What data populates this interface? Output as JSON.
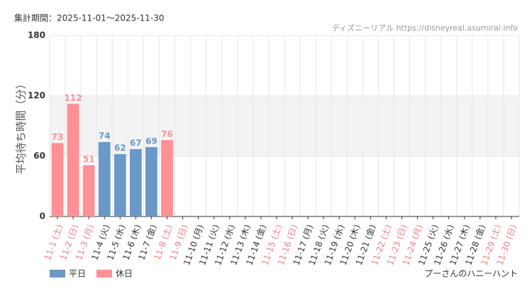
{
  "chart_data": {
    "type": "bar",
    "subtitle": "集計期間：2025-11-01〜2025-11-30",
    "source": "ディズニーリアル https://disneyreal.asumirai.info",
    "title": "プーさんのハニーハント",
    "y_label": "平均待ち時間（分）",
    "categories": [
      "11-1 (土)",
      "11-2 (日)",
      "11-3 (月)",
      "11-4 (火)",
      "11-5 (水)",
      "11-6 (木)",
      "11-7 (金)",
      "11-8 (土)",
      "11-9 (日)",
      "11-10 (月)",
      "11-11 (火)",
      "11-12 (水)",
      "11-13 (木)",
      "11-14 (金)",
      "11-15 (土)",
      "11-16 (日)",
      "11-17 (月)",
      "11-18 (火)",
      "11-19 (水)",
      "11-20 (木)",
      "11-21 (金)",
      "11-22 (土)",
      "11-23 (日)",
      "11-24 (月)",
      "11-25 (火)",
      "11-26 (水)",
      "11-27 (木)",
      "11-28 (金)",
      "11-29 (土)",
      "11-30 (日)"
    ],
    "category_colors": [
      "#f0808a",
      "#f0808a",
      "#f0808a",
      "#333333",
      "#333333",
      "#333333",
      "#333333",
      "#f0808a",
      "#f0808a",
      "#333333",
      "#333333",
      "#333333",
      "#333333",
      "#333333",
      "#f0808a",
      "#f0808a",
      "#333333",
      "#333333",
      "#333333",
      "#333333",
      "#333333",
      "#f0808a",
      "#f0808a",
      "#f0808a",
      "#333333",
      "#333333",
      "#333333",
      "#333333",
      "#f0808a",
      "#f0808a"
    ],
    "series": [
      {
        "name": "平日",
        "color": "#6a98c8",
        "values": [
          null,
          null,
          null,
          74,
          62,
          67,
          69,
          null,
          null,
          null,
          null,
          null,
          null,
          null,
          null,
          null,
          null,
          null,
          null,
          null,
          null,
          null,
          null,
          null,
          null,
          null,
          null,
          null,
          null,
          null
        ]
      },
      {
        "name": "休日",
        "color": "#ff9096",
        "values": [
          73,
          112,
          51,
          null,
          null,
          null,
          null,
          76,
          null,
          null,
          null,
          null,
          null,
          null,
          null,
          null,
          null,
          null,
          null,
          null,
          null,
          null,
          null,
          null,
          null,
          null,
          null,
          null,
          null,
          null
        ]
      }
    ],
    "ylim": [
      0,
      180
    ],
    "yticks": [
      0,
      60,
      120,
      180
    ],
    "grid": true
  }
}
